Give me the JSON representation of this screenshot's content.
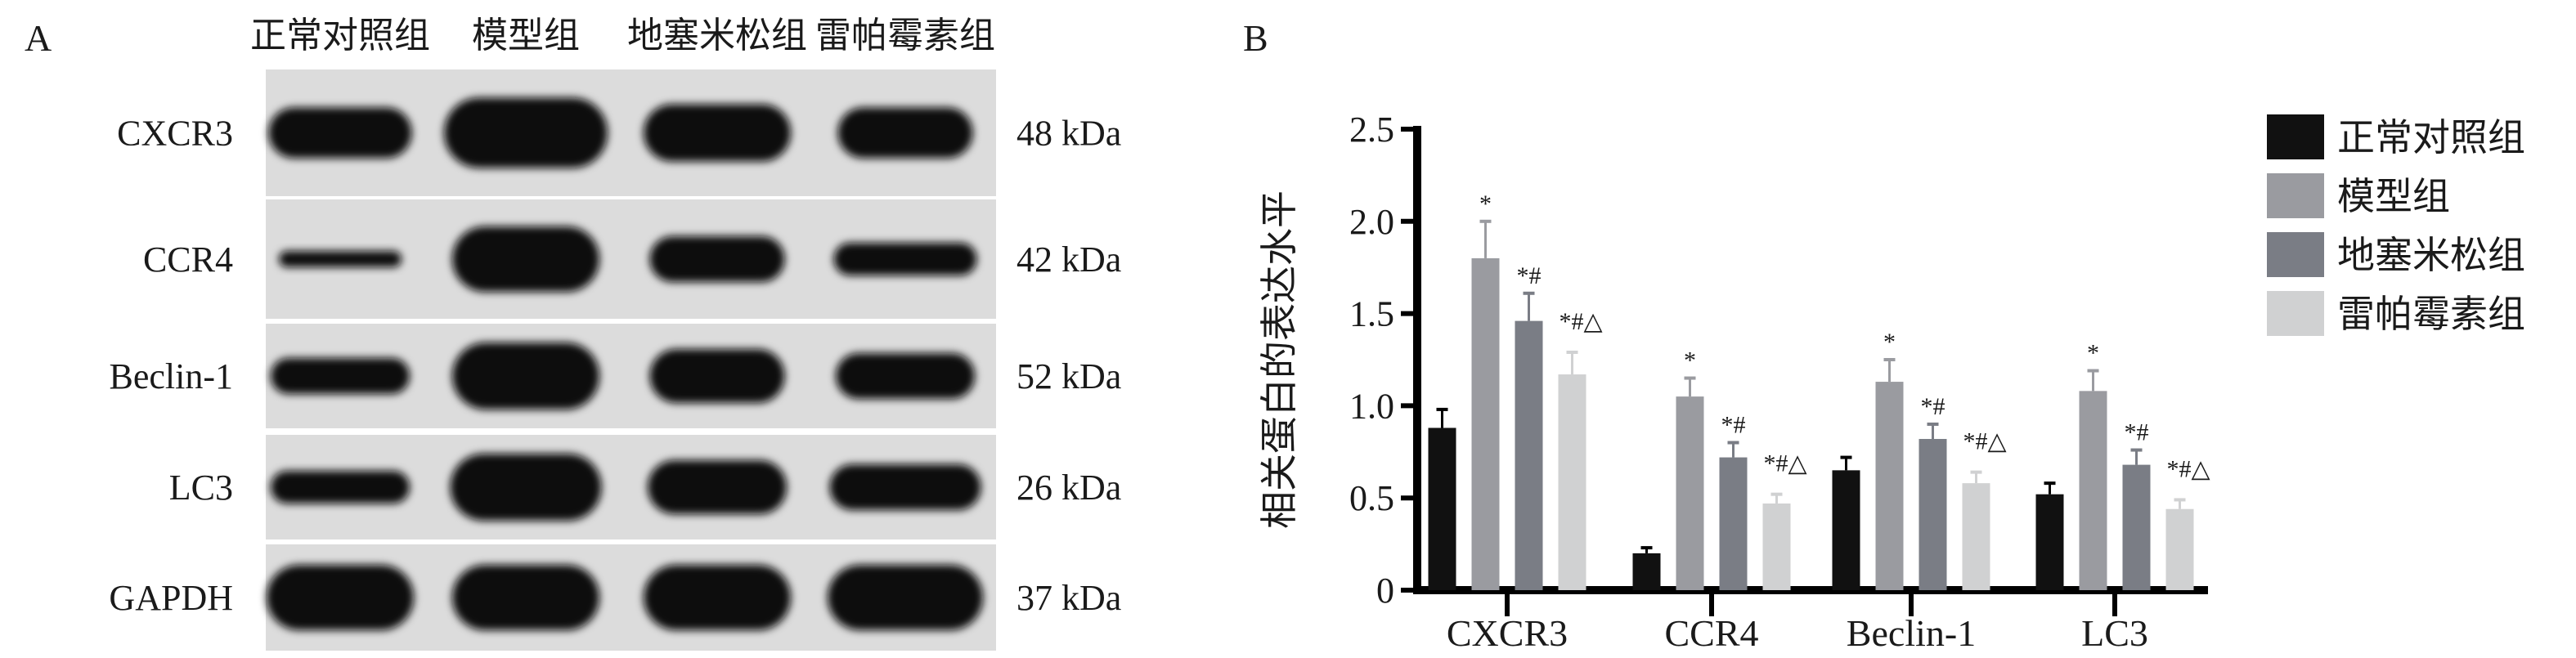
{
  "panel_a": {
    "label": "A",
    "lanes": [
      "正常对照组",
      "模型组",
      "地塞米松组",
      "雷帕霉素组"
    ],
    "rows": [
      {
        "protein": "CXCR3",
        "size": "48 kDa"
      },
      {
        "protein": "CCR4",
        "size": "42 kDa"
      },
      {
        "protein": "Beclin-1",
        "size": "52 kDa"
      },
      {
        "protein": "LC3",
        "size": "26 kDa"
      },
      {
        "protein": "GAPDH",
        "size": "37 kDa"
      }
    ]
  },
  "chart_data": {
    "panel_label": "B",
    "type": "bar",
    "ylabel": "相关蛋白的表达水平",
    "xlabel": "",
    "ylim": [
      0,
      2.5
    ],
    "yticks": [
      "0",
      "0.5",
      "1.0",
      "1.5",
      "2.0",
      "2.5"
    ],
    "categories": [
      "CXCR3",
      "CCR4",
      "Beclin-1",
      "LC3"
    ],
    "legend_position": "right",
    "series": [
      {
        "name": "正常对照组",
        "color": "#111111",
        "values": [
          0.88,
          0.2,
          0.65,
          0.52
        ],
        "errors": [
          0.1,
          0.03,
          0.07,
          0.06
        ],
        "marks": [
          "",
          "",
          "",
          ""
        ]
      },
      {
        "name": "模型组",
        "color": "#9a9ba0",
        "values": [
          1.8,
          1.05,
          1.13,
          1.08
        ],
        "errors": [
          0.2,
          0.1,
          0.12,
          0.11
        ],
        "marks": [
          "*",
          "*",
          "*",
          "*"
        ]
      },
      {
        "name": "地塞米松组",
        "color": "#7a7d85",
        "values": [
          1.46,
          0.72,
          0.82,
          0.68
        ],
        "errors": [
          0.15,
          0.08,
          0.08,
          0.08
        ],
        "marks": [
          "*#",
          "*#",
          "*#",
          "*#"
        ]
      },
      {
        "name": "雷帕霉素组",
        "color": "#d0d1d2",
        "values": [
          1.17,
          0.47,
          0.58,
          0.44
        ],
        "errors": [
          0.12,
          0.05,
          0.06,
          0.05
        ],
        "marks": [
          "*#△",
          "*#△",
          "*#△",
          "*#△"
        ]
      }
    ]
  }
}
